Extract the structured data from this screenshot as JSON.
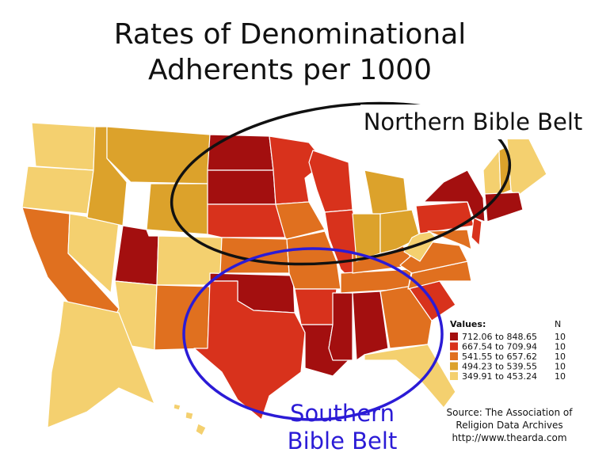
{
  "title_lines": [
    "Rates of Denominational",
    "Adherents per 1000"
  ],
  "annotations": {
    "northern": "Northern Bible Belt",
    "southern_lines": [
      "Southern",
      "Bible Belt"
    ]
  },
  "legend": {
    "heading": "Values:",
    "count_heading": "N",
    "classes": [
      {
        "label": "712.06 to 848.65",
        "n": "10",
        "color": "#a30f0f"
      },
      {
        "label": "667.54 to 709.94",
        "n": "10",
        "color": "#d8321c"
      },
      {
        "label": "541.55 to 657.62",
        "n": "10",
        "color": "#e0701f"
      },
      {
        "label": "494.23 to 539.55",
        "n": "10",
        "color": "#dca22b"
      },
      {
        "label": "349.91 to 453.24",
        "n": "10",
        "color": "#f4d06f"
      }
    ]
  },
  "source_lines": [
    "Source: The Association of",
    "Religion Data Archives",
    "http://www.thearda.com"
  ]
}
